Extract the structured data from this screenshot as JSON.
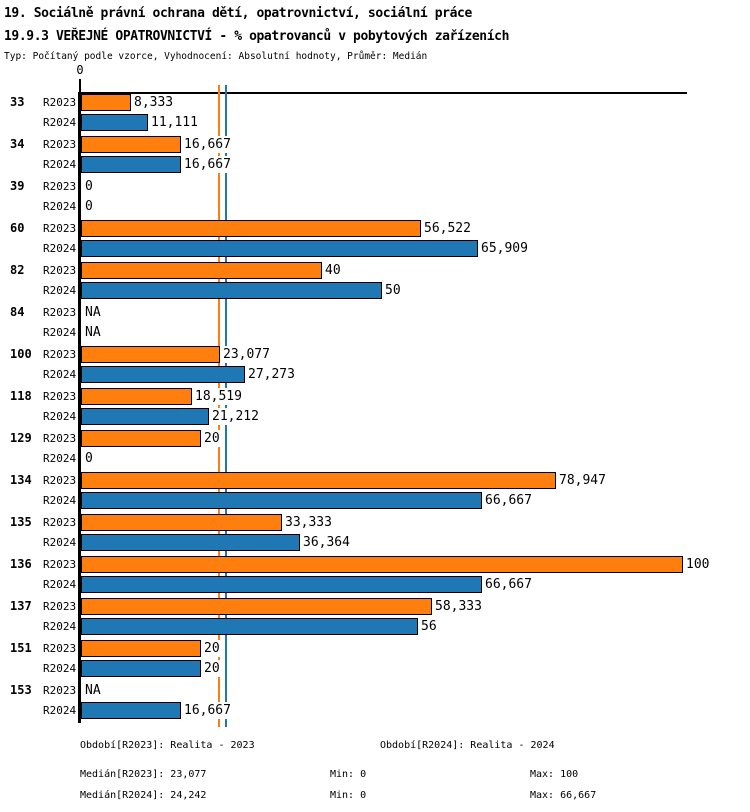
{
  "header": {
    "title_line1": "19. Sociálně právní ochrana dětí, opatrovnictví, sociální práce",
    "title_line2": "19.9.3 VEŘEJNÉ OPATROVNICTVÍ - % opatrovanců v pobytových zařízeních",
    "meta": "Typ: Počítaný podle vzorce, Vyhodnocení: Absolutní hodnoty, Průměr: Medián"
  },
  "chart_data": {
    "type": "bar",
    "orientation": "horizontal",
    "axis": {
      "zero_label": "0",
      "xlim": [
        0,
        100.8
      ],
      "grid": false
    },
    "series_names": [
      "R2023",
      "R2024"
    ],
    "colors": {
      "r2023_bar": "#ff7f0e",
      "r2024_bar": "#1f77b4",
      "bar_border": "#000000",
      "axis": "#000000"
    },
    "median_lines": [
      {
        "name": "Medián[R2023]",
        "value": 23.077,
        "color": "#ff7f0e"
      },
      {
        "name": "Medián[R2024]",
        "value": 24.242,
        "color": "#1f77b4"
      }
    ],
    "groups": [
      {
        "category": "33",
        "rows": [
          {
            "series": "R2023",
            "value": 8.333,
            "label": "8,333"
          },
          {
            "series": "R2024",
            "value": 11.111,
            "label": "11,111"
          }
        ]
      },
      {
        "category": "34",
        "rows": [
          {
            "series": "R2023",
            "value": 16.667,
            "label": "16,667"
          },
          {
            "series": "R2024",
            "value": 16.667,
            "label": "16,667"
          }
        ]
      },
      {
        "category": "39",
        "rows": [
          {
            "series": "R2023",
            "value": 0,
            "label": "0"
          },
          {
            "series": "R2024",
            "value": 0,
            "label": "0"
          }
        ]
      },
      {
        "category": "60",
        "rows": [
          {
            "series": "R2023",
            "value": 56.522,
            "label": "56,522"
          },
          {
            "series": "R2024",
            "value": 65.909,
            "label": "65,909"
          }
        ]
      },
      {
        "category": "82",
        "rows": [
          {
            "series": "R2023",
            "value": 40,
            "label": "40"
          },
          {
            "series": "R2024",
            "value": 50,
            "label": "50"
          }
        ]
      },
      {
        "category": "84",
        "rows": [
          {
            "series": "R2023",
            "value": null,
            "label": "NA"
          },
          {
            "series": "R2024",
            "value": null,
            "label": "NA"
          }
        ]
      },
      {
        "category": "100",
        "rows": [
          {
            "series": "R2023",
            "value": 23.077,
            "label": "23,077"
          },
          {
            "series": "R2024",
            "value": 27.273,
            "label": "27,273"
          }
        ]
      },
      {
        "category": "118",
        "rows": [
          {
            "series": "R2023",
            "value": 18.519,
            "label": "18,519"
          },
          {
            "series": "R2024",
            "value": 21.212,
            "label": "21,212"
          }
        ]
      },
      {
        "category": "129",
        "rows": [
          {
            "series": "R2023",
            "value": 20,
            "label": "20"
          },
          {
            "series": "R2024",
            "value": 0,
            "label": "0"
          }
        ]
      },
      {
        "category": "134",
        "rows": [
          {
            "series": "R2023",
            "value": 78.947,
            "label": "78,947"
          },
          {
            "series": "R2024",
            "value": 66.667,
            "label": "66,667"
          }
        ]
      },
      {
        "category": "135",
        "rows": [
          {
            "series": "R2023",
            "value": 33.333,
            "label": "33,333"
          },
          {
            "series": "R2024",
            "value": 36.364,
            "label": "36,364"
          }
        ]
      },
      {
        "category": "136",
        "rows": [
          {
            "series": "R2023",
            "value": 100,
            "label": "100"
          },
          {
            "series": "R2024",
            "value": 66.667,
            "label": "66,667"
          }
        ]
      },
      {
        "category": "137",
        "rows": [
          {
            "series": "R2023",
            "value": 58.333,
            "label": "58,333"
          },
          {
            "series": "R2024",
            "value": 56,
            "label": "56"
          }
        ]
      },
      {
        "category": "151",
        "rows": [
          {
            "series": "R2023",
            "value": 20,
            "label": "20"
          },
          {
            "series": "R2024",
            "value": 20,
            "label": "20"
          }
        ]
      },
      {
        "category": "153",
        "rows": [
          {
            "series": "R2023",
            "value": null,
            "label": "NA"
          },
          {
            "series": "R2024",
            "value": 16.667,
            "label": "16,667"
          }
        ]
      }
    ]
  },
  "footer": {
    "period_r2023": "Období[R2023]: Realita - 2023",
    "period_r2024": "Období[R2024]: Realita - 2024",
    "median_r2023": "Medián[R2023]: 23,077",
    "min_r2023": "Min: 0",
    "max_r2023": "Max: 100",
    "median_r2024": "Medián[R2024]: 24,242",
    "min_r2024": "Min: 0",
    "max_r2024": "Max: 66,667"
  }
}
